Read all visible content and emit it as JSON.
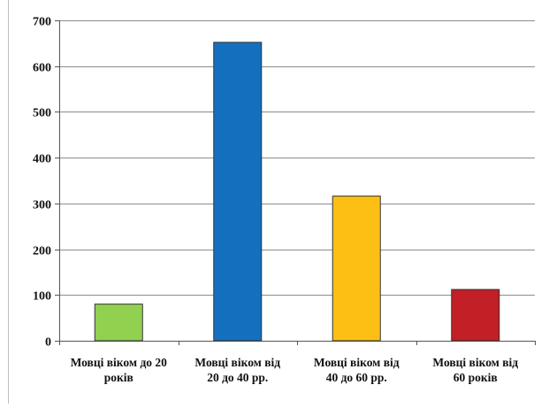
{
  "chart_data": {
    "type": "bar",
    "title": "",
    "xlabel": "",
    "ylabel": "",
    "ylim": [
      0,
      700
    ],
    "yticks": [
      0,
      100,
      200,
      300,
      400,
      500,
      600,
      700
    ],
    "grid": true,
    "legend": "none",
    "categories": [
      [
        "Мовці віком до 20",
        "років"
      ],
      [
        "Мовці віком від",
        "20 до 40 рр."
      ],
      [
        "Мовці віком від",
        "40 до 60 рр."
      ],
      [
        "Мовці віком від",
        "60 років"
      ]
    ],
    "values": [
      80,
      652,
      316,
      112
    ],
    "colors": [
      "#92d050",
      "#1470be",
      "#fdbf14",
      "#c21f26"
    ]
  }
}
